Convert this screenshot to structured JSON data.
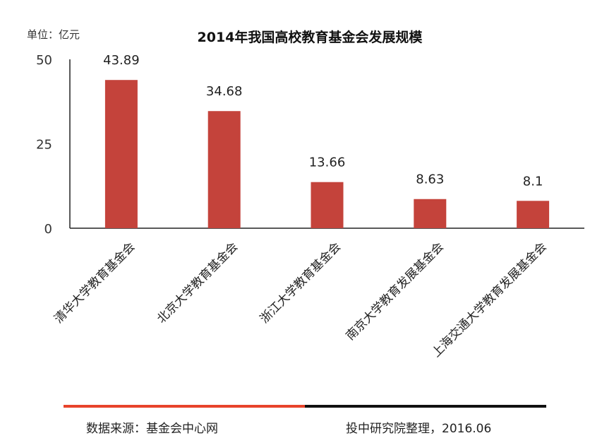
{
  "chart_data": {
    "type": "bar",
    "title": "2014年我国高校教育基金会发展规模",
    "ylabel": "单位：亿元",
    "xlabel": "",
    "ylim": [
      0,
      50
    ],
    "yticks": [
      0,
      25,
      50
    ],
    "categories": [
      "清华大学教育基金会",
      "北京大学教育基金会",
      "浙江大学教育基金会",
      "南京大学教育发展基金会",
      "上海交通大学教育发展基金会"
    ],
    "values": [
      43.89,
      34.68,
      13.66,
      8.63,
      8.1
    ],
    "value_labels": [
      "43.89",
      "34.68",
      "13.66",
      "8.63",
      "8.1"
    ],
    "grid": false,
    "bar_color": "#c4433b"
  },
  "footer": {
    "source": "数据来源：基金会中心网",
    "credit": "投中研究院整理，2016.06",
    "accent_color": "#e8432b"
  }
}
